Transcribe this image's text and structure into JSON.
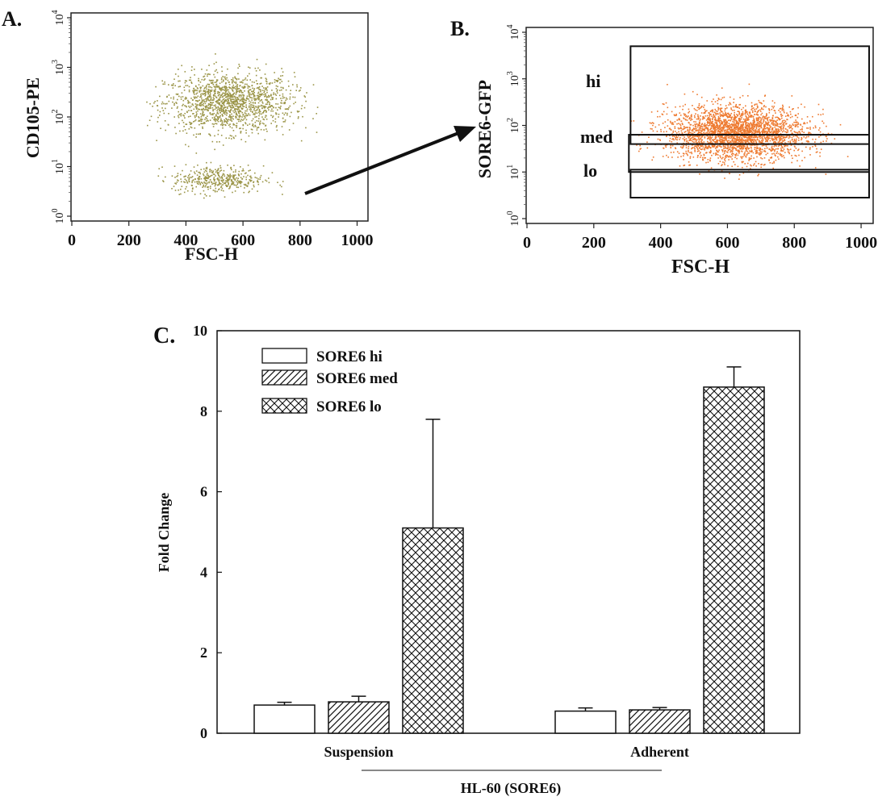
{
  "panels": {
    "a": {
      "panel_label": "A.",
      "xlabel": "FSC-H",
      "ylabel": "CD105-PE",
      "xticks": [
        "0",
        "200",
        "400",
        "600",
        "800",
        "1000"
      ],
      "yticks": [
        "10",
        "10",
        "10",
        "10",
        "10"
      ],
      "ytick_exps": [
        "0",
        "1",
        "2",
        "3",
        "4"
      ],
      "colors": {
        "dots": "#9b9548"
      }
    },
    "b": {
      "panel_label": "B.",
      "xlabel": "FSC-H",
      "ylabel": "SORE6-GFP",
      "xticks": [
        "0",
        "200",
        "400",
        "600",
        "800",
        "1000"
      ],
      "yticks": [
        "10",
        "10",
        "10",
        "10",
        "10"
      ],
      "ytick_exps": [
        "0",
        "1",
        "2",
        "3",
        "4"
      ],
      "gates": {
        "hi": "hi",
        "med": "med",
        "lo": "lo"
      },
      "colors": {
        "dots": "#ee7a30"
      }
    }
  },
  "chart_data": [
    {
      "type": "scatter",
      "title": "",
      "xlabel": "FSC-H",
      "ylabel": "CD105-PE",
      "xlim": [
        0,
        1024
      ],
      "ylim_log10": [
        0,
        4
      ],
      "y_scale": "log",
      "populations": [
        {
          "x_range": [
            300,
            800
          ],
          "y_range_log10": [
            1.7,
            2.9
          ]
        },
        {
          "x_range": [
            320,
            700
          ],
          "y_range_log10": [
            0.5,
            1.0
          ]
        }
      ]
    },
    {
      "type": "scatter",
      "title": "",
      "xlabel": "FSC-H",
      "ylabel": "SORE6-GFP",
      "xlim": [
        0,
        1024
      ],
      "ylim_log10": [
        0,
        4
      ],
      "y_scale": "log",
      "populations": [
        {
          "x_range": [
            350,
            900
          ],
          "y_range_log10": [
            1.2,
            2.5
          ]
        }
      ],
      "gates": [
        {
          "name": "hi",
          "x_range": [
            310,
            1024
          ],
          "y_range_log10": [
            1.6,
            3.7
          ]
        },
        {
          "name": "med",
          "x_range": [
            305,
            1024
          ],
          "y_range_log10": [
            1.0,
            1.8
          ]
        },
        {
          "name": "lo",
          "x_range": [
            310,
            1024
          ],
          "y_range_log10": [
            0.45,
            1.05
          ]
        }
      ]
    },
    {
      "type": "bar",
      "panel_label": "C.",
      "title": "",
      "xlabel": "",
      "ylabel": "Fold Change",
      "group_label": "HL-60 (SORE6)",
      "categories": [
        "Suspension",
        "Adherent"
      ],
      "ylim": [
        0,
        10
      ],
      "yticks": [
        0,
        2,
        4,
        6,
        8,
        10
      ],
      "legend_position": "top-left",
      "series": [
        {
          "name": "SORE6 hi",
          "pattern": "open",
          "values": [
            0.7,
            0.55
          ],
          "errors": [
            0.07,
            0.08
          ]
        },
        {
          "name": "SORE6 med",
          "pattern": "diagonal",
          "values": [
            0.78,
            0.58
          ],
          "errors": [
            0.14,
            0.06
          ]
        },
        {
          "name": "SORE6 lo",
          "pattern": "crosshatch",
          "values": [
            5.1,
            8.6
          ],
          "errors": [
            2.7,
            0.5
          ]
        }
      ]
    }
  ]
}
